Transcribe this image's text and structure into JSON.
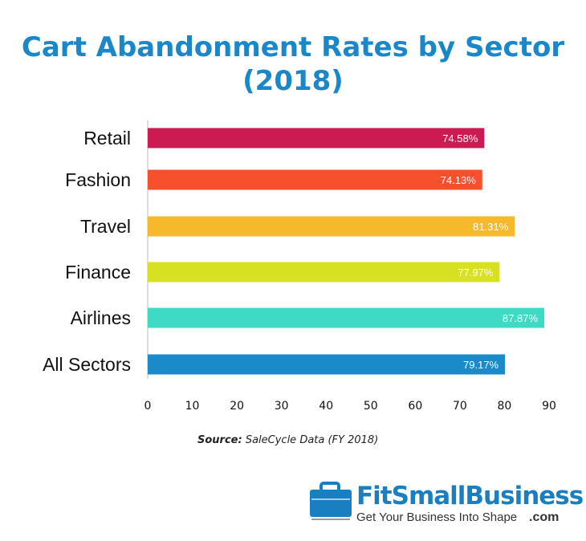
{
  "chart_data": {
    "type": "bar",
    "orientation": "horizontal",
    "title": "Cart Abandonment Rates by Sector (2018)",
    "categories": [
      "Retail",
      "Fashion",
      "Travel",
      "Finance",
      "Airlines",
      "All Sectors"
    ],
    "values": [
      74.58,
      74.13,
      81.31,
      77.97,
      87.87,
      79.17
    ],
    "data_labels": [
      "74.58%",
      "74.13%",
      "81.31%",
      "77.97%",
      "87.87%",
      "79.17%"
    ],
    "colors": [
      "#cc1a52",
      "#f6502d",
      "#f6b92c",
      "#d7e021",
      "#3ddbc3",
      "#1a8ac9"
    ],
    "xticks": [
      0,
      10,
      20,
      30,
      40,
      50,
      60,
      70,
      80,
      90
    ],
    "xlim": [
      0,
      90
    ],
    "grid": false,
    "xlabel": "",
    "ylabel": ""
  },
  "source": {
    "label": "Source:",
    "text": "SaleCycle Data (FY 2018)"
  },
  "logo": {
    "name": "FitSmallBusiness",
    "tagline": "Get Your Business Into Shape",
    "suffix": ".com",
    "color": "#1a7fc0"
  }
}
